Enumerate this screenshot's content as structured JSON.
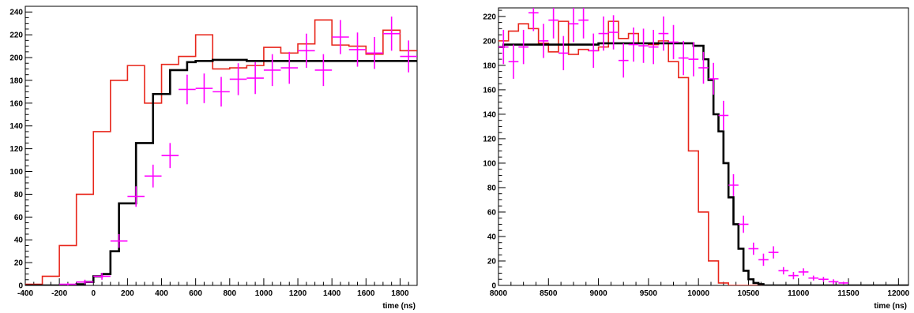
{
  "chart_data": [
    {
      "type": "histogram",
      "xlabel": "time (ns)",
      "ylabel": "",
      "title": "",
      "xlim": [
        -400,
        1900
      ],
      "ylim": [
        0,
        245
      ],
      "xticks": [
        -400,
        -200,
        0,
        200,
        400,
        600,
        800,
        1000,
        1200,
        1400,
        1600,
        1800
      ],
      "yticks": [
        0,
        20,
        40,
        60,
        80,
        100,
        120,
        140,
        160,
        180,
        200,
        220,
        240
      ],
      "grid": false,
      "series": [
        {
          "style": "step",
          "color": "#e8261b",
          "x": [
            -400,
            -300,
            -200,
            -100,
            0,
            100,
            200,
            300,
            400,
            500,
            600,
            700,
            800,
            900,
            1000,
            1100,
            1200,
            1300,
            1400,
            1500,
            1600,
            1700,
            1800,
            1900
          ],
          "values": [
            1,
            8,
            35,
            80,
            135,
            180,
            193,
            160,
            194,
            201,
            220,
            190,
            191,
            193,
            209,
            204,
            212,
            233,
            211,
            210,
            203,
            224,
            206
          ]
        },
        {
          "style": "step",
          "color": "#000000",
          "x": [
            -400,
            -100,
            -50,
            0,
            50,
            100,
            150,
            200,
            250,
            300,
            350,
            400,
            450,
            500,
            550,
            600,
            700,
            800,
            900,
            1000,
            1900
          ],
          "values": [
            0,
            1,
            3,
            8,
            10,
            30,
            72,
            72,
            125,
            125,
            168,
            168,
            189,
            189,
            196,
            197,
            198,
            198,
            197,
            197
          ]
        },
        {
          "style": "points",
          "color": "#ff00ff",
          "x": [
            -150,
            -50,
            50,
            150,
            250,
            350,
            450,
            550,
            650,
            750,
            850,
            950,
            1050,
            1150,
            1250,
            1350,
            1450,
            1550,
            1650,
            1750,
            1850
          ],
          "y": [
            1,
            3,
            8,
            39,
            78,
            96,
            114,
            172,
            173,
            170,
            181,
            182,
            189,
            191,
            206,
            189,
            218,
            207,
            204,
            221,
            201
          ],
          "yerr": [
            1,
            2,
            3,
            6,
            9,
            10,
            11,
            13,
            13,
            13,
            14,
            14,
            14,
            14,
            15,
            14,
            15,
            15,
            14,
            15,
            14
          ],
          "xerr": 50
        }
      ]
    },
    {
      "type": "histogram",
      "xlabel": "time (ns)",
      "ylabel": "",
      "title": "",
      "xlim": [
        8000,
        12100
      ],
      "ylim": [
        0,
        227
      ],
      "xticks": [
        8000,
        8500,
        9000,
        9500,
        10000,
        10500,
        11000,
        11500,
        12000
      ],
      "yticks": [
        0,
        20,
        40,
        60,
        80,
        100,
        120,
        140,
        160,
        180,
        200,
        220
      ],
      "grid": false,
      "series": [
        {
          "style": "step",
          "color": "#e8261b",
          "x": [
            8000,
            8100,
            8200,
            8300,
            8400,
            8500,
            8600,
            8700,
            8800,
            8900,
            9000,
            9100,
            9200,
            9300,
            9400,
            9500,
            9600,
            9700,
            9800,
            9900,
            10000,
            10100,
            10200,
            10300,
            12100
          ],
          "values": [
            200,
            208,
            214,
            210,
            198,
            191,
            216,
            189,
            193,
            192,
            195,
            216,
            202,
            206,
            198,
            197,
            200,
            183,
            170,
            110,
            60,
            20,
            2,
            0
          ]
        },
        {
          "style": "step",
          "color": "#000000",
          "x": [
            8000,
            8050,
            9000,
            9950,
            10050,
            10100,
            10150,
            10200,
            10250,
            10300,
            10350,
            10400,
            10450,
            10500,
            10550,
            10600,
            10650,
            10700,
            12100
          ],
          "values": [
            195,
            197,
            198,
            196,
            185,
            168,
            140,
            126,
            100,
            72,
            50,
            30,
            12,
            5,
            2,
            1,
            0,
            0
          ]
        },
        {
          "style": "points",
          "color": "#ff00ff",
          "x": [
            8050,
            8150,
            8250,
            8350,
            8450,
            8550,
            8650,
            8750,
            8850,
            8950,
            9050,
            9150,
            9250,
            9350,
            9450,
            9550,
            9650,
            9750,
            9850,
            9950,
            10050,
            10150,
            10250,
            10350,
            10450,
            10550,
            10650,
            10750,
            10850,
            10950,
            11050,
            11150,
            11250,
            11350,
            11450
          ],
          "y": [
            195,
            183,
            195,
            223,
            200,
            217,
            190,
            214,
            217,
            192,
            206,
            207,
            184,
            197,
            196,
            195,
            206,
            199,
            186,
            185,
            178,
            169,
            139,
            82,
            50,
            30,
            21,
            27,
            12,
            8,
            11,
            6,
            5,
            3,
            2
          ],
          "yerr": [
            14,
            14,
            14,
            15,
            14,
            15,
            14,
            15,
            15,
            14,
            14,
            14,
            14,
            14,
            14,
            14,
            14,
            14,
            14,
            14,
            13,
            13,
            12,
            9,
            7,
            5,
            5,
            5,
            3,
            3,
            3,
            2,
            2,
            2,
            1
          ],
          "xerr": 50
        }
      ]
    }
  ]
}
